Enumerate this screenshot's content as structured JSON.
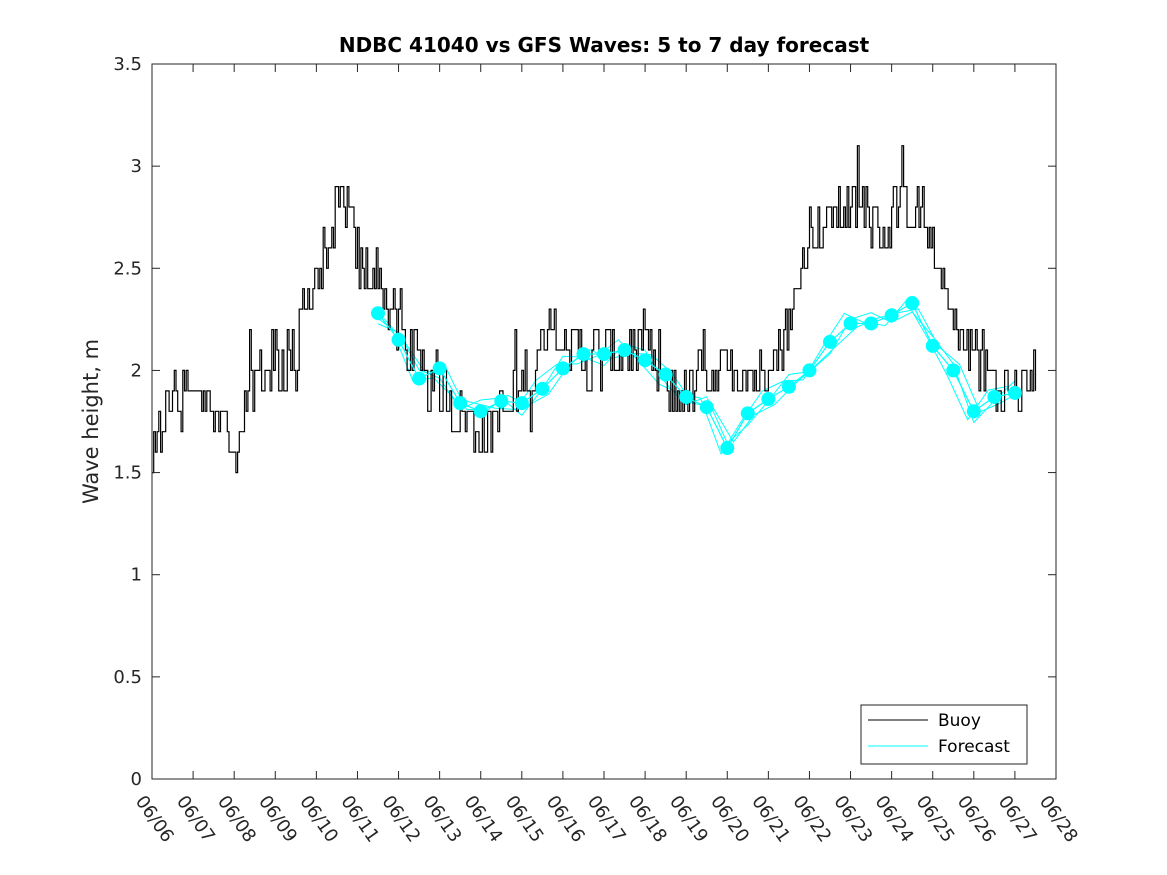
{
  "chart_data": {
    "type": "line",
    "title": "NDBC 41040 vs GFS Waves: 5 to 7 day forecast",
    "xlabel": "",
    "ylabel": "Wave height, m",
    "xlim": [
      "06/06",
      "06/28"
    ],
    "ylim": [
      0,
      3.5
    ],
    "x_ticks": [
      "06/06",
      "06/07",
      "06/08",
      "06/09",
      "06/10",
      "06/11",
      "06/12",
      "06/13",
      "06/14",
      "06/15",
      "06/16",
      "06/17",
      "06/18",
      "06/19",
      "06/20",
      "06/21",
      "06/22",
      "06/23",
      "06/24",
      "06/25",
      "06/26",
      "06/27",
      "06/28"
    ],
    "y_ticks": [
      "0",
      "0.5",
      "1",
      "1.5",
      "2",
      "2.5",
      "3",
      "3.5"
    ],
    "grid": false,
    "legend_position": "bottom-right",
    "colors": {
      "buoy": "#000000",
      "forecast": "#00ffff",
      "axis": "#262626"
    },
    "series": [
      {
        "name": "Buoy",
        "style": "line",
        "x": [
          "06/06 00:00",
          "06/06 06:00",
          "06/06 12:00",
          "06/06 18:00",
          "06/07 00:00",
          "06/07 06:00",
          "06/07 12:00",
          "06/07 18:00",
          "06/08 00:00",
          "06/08 06:00",
          "06/08 12:00",
          "06/08 18:00",
          "06/09 00:00",
          "06/09 06:00",
          "06/09 12:00",
          "06/09 18:00",
          "06/10 00:00",
          "06/10 06:00",
          "06/10 12:00",
          "06/10 18:00",
          "06/11 00:00",
          "06/11 06:00",
          "06/11 12:00",
          "06/11 18:00",
          "06/12 00:00",
          "06/12 06:00",
          "06/12 12:00",
          "06/12 18:00",
          "06/13 00:00",
          "06/13 06:00",
          "06/13 12:00",
          "06/13 18:00",
          "06/14 00:00",
          "06/14 06:00",
          "06/14 12:00",
          "06/14 18:00",
          "06/15 00:00",
          "06/15 06:00",
          "06/15 12:00",
          "06/15 18:00",
          "06/16 00:00",
          "06/16 06:00",
          "06/16 12:00",
          "06/16 18:00",
          "06/17 00:00",
          "06/17 06:00",
          "06/17 12:00",
          "06/17 18:00",
          "06/18 00:00",
          "06/18 06:00",
          "06/18 12:00",
          "06/18 18:00",
          "06/19 00:00",
          "06/19 06:00",
          "06/19 12:00",
          "06/19 18:00",
          "06/20 00:00",
          "06/20 06:00",
          "06/20 12:00",
          "06/20 18:00",
          "06/21 00:00",
          "06/21 06:00",
          "06/21 12:00",
          "06/21 18:00",
          "06/22 00:00",
          "06/22 06:00",
          "06/22 12:00",
          "06/22 18:00",
          "06/23 00:00",
          "06/23 06:00",
          "06/23 12:00",
          "06/23 18:00",
          "06/24 00:00",
          "06/24 06:00",
          "06/24 12:00",
          "06/24 18:00",
          "06/25 00:00",
          "06/25 06:00",
          "06/25 12:00",
          "06/25 18:00",
          "06/26 00:00",
          "06/26 06:00",
          "06/26 12:00",
          "06/26 18:00",
          "06/27 00:00",
          "06/27 06:00",
          "06/27 12:00"
        ],
        "y": [
          1.5,
          1.75,
          1.85,
          1.85,
          1.85,
          1.9,
          1.8,
          1.8,
          1.6,
          1.85,
          1.95,
          2.0,
          2.05,
          2.05,
          2.1,
          2.35,
          2.5,
          2.6,
          2.8,
          2.8,
          2.55,
          2.5,
          2.45,
          2.3,
          2.2,
          2.1,
          2.0,
          1.9,
          1.85,
          1.85,
          1.8,
          1.75,
          1.7,
          1.75,
          1.8,
          1.85,
          1.95,
          2.0,
          2.1,
          2.2,
          2.05,
          2.1,
          2.05,
          2.05,
          2.05,
          2.1,
          2.1,
          2.15,
          2.1,
          2.0,
          1.9,
          1.9,
          1.9,
          1.95,
          1.95,
          1.95,
          1.95,
          2.0,
          2.0,
          2.0,
          2.05,
          2.1,
          2.2,
          2.45,
          2.65,
          2.7,
          2.75,
          2.8,
          2.75,
          2.75,
          2.75,
          2.7,
          2.75,
          2.8,
          2.8,
          2.75,
          2.6,
          2.45,
          2.25,
          2.15,
          2.05,
          2.05,
          1.95,
          1.9,
          1.85,
          1.9,
          2.0
        ]
      },
      {
        "name": "Forecast",
        "style": "line+markers",
        "x": [
          "06/11 12:00",
          "06/12 00:00",
          "06/12 12:00",
          "06/13 00:00",
          "06/13 12:00",
          "06/14 00:00",
          "06/14 12:00",
          "06/15 00:00",
          "06/15 12:00",
          "06/16 00:00",
          "06/16 12:00",
          "06/17 00:00",
          "06/17 12:00",
          "06/18 00:00",
          "06/18 12:00",
          "06/19 00:00",
          "06/19 12:00",
          "06/20 00:00",
          "06/20 12:00",
          "06/21 00:00",
          "06/21 12:00",
          "06/22 00:00",
          "06/22 12:00",
          "06/23 00:00",
          "06/23 12:00",
          "06/24 00:00",
          "06/24 12:00",
          "06/25 00:00",
          "06/25 12:00",
          "06/26 00:00",
          "06/26 12:00",
          "06/27 00:00"
        ],
        "y": [
          2.28,
          2.15,
          1.96,
          2.01,
          1.84,
          1.8,
          1.85,
          1.84,
          1.91,
          2.01,
          2.08,
          2.08,
          2.1,
          2.05,
          1.98,
          1.87,
          1.82,
          1.62,
          1.79,
          1.86,
          1.92,
          2.0,
          2.14,
          2.23,
          2.23,
          2.27,
          2.33,
          2.12,
          2.0,
          1.8,
          1.87,
          1.89
        ]
      }
    ]
  }
}
